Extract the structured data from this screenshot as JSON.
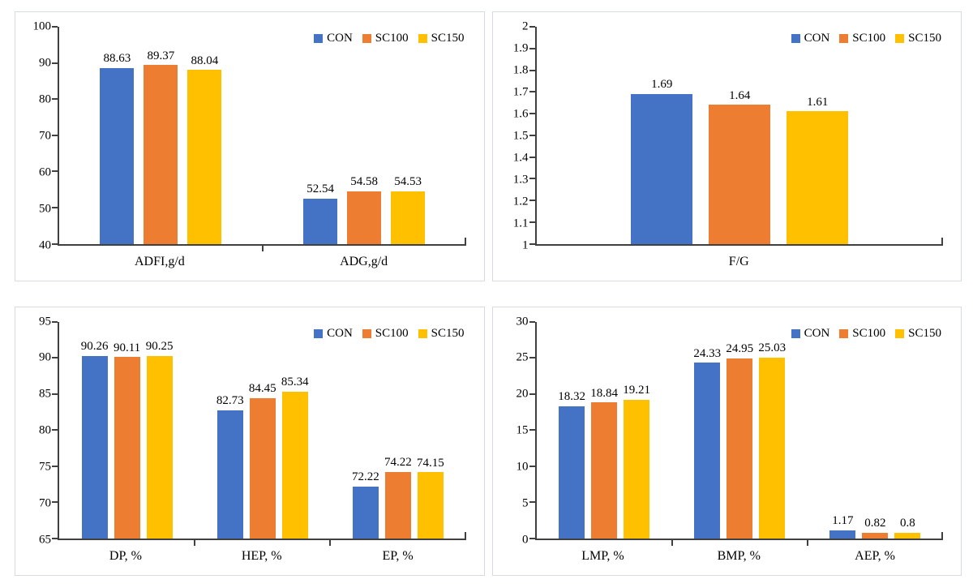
{
  "figure": {
    "background": "#ffffff",
    "panel_border_color": "#d6dce4",
    "axis_color": "#404040",
    "text_color": "#000000",
    "series_colors": {
      "CON": "#4472C4",
      "SC100": "#ED7D31",
      "SC150": "#FFC000"
    }
  },
  "chart_data": [
    {
      "type": "bar",
      "position": "top-left",
      "categories": [
        "ADFI,g/d",
        "ADG,g/d"
      ],
      "series": [
        {
          "name": "CON",
          "color": "#4472C4",
          "values": [
            88.63,
            52.54
          ],
          "labels": [
            "88.63",
            "52.54"
          ]
        },
        {
          "name": "SC100",
          "color": "#ED7D31",
          "values": [
            89.37,
            54.58
          ],
          "labels": [
            "89.37",
            "54.58"
          ]
        },
        {
          "name": "SC150",
          "color": "#FFC000",
          "values": [
            88.04,
            54.53
          ],
          "labels": [
            "88.04",
            "54.53"
          ]
        }
      ],
      "ylim": [
        40,
        100
      ],
      "yticks": [
        "40",
        "50",
        "60",
        "70",
        "80",
        "90",
        "100"
      ],
      "xlabel": "",
      "ylabel": "",
      "grid": false,
      "legend_position": "top-right"
    },
    {
      "type": "bar",
      "position": "top-right",
      "categories": [
        "F/G"
      ],
      "series": [
        {
          "name": "CON",
          "color": "#4472C4",
          "values": [
            1.69
          ],
          "labels": [
            "1.69"
          ]
        },
        {
          "name": "SC100",
          "color": "#ED7D31",
          "values": [
            1.64
          ],
          "labels": [
            "1.64"
          ]
        },
        {
          "name": "SC150",
          "color": "#FFC000",
          "values": [
            1.61
          ],
          "labels": [
            "1.61"
          ]
        }
      ],
      "ylim": [
        1,
        2
      ],
      "yticks": [
        "1",
        "1.1",
        "1.2",
        "1.3",
        "1.4",
        "1.5",
        "1.6",
        "1.7",
        "1.8",
        "1.9",
        "2"
      ],
      "xlabel": "",
      "ylabel": "",
      "grid": false,
      "legend_position": "top-right"
    },
    {
      "type": "bar",
      "position": "bottom-left",
      "categories": [
        "DP, %",
        "HEP, %",
        "EP, %"
      ],
      "series": [
        {
          "name": "CON",
          "color": "#4472C4",
          "values": [
            90.26,
            82.73,
            72.22
          ],
          "labels": [
            "90.26",
            "82.73",
            "72.22"
          ]
        },
        {
          "name": "SC100",
          "color": "#ED7D31",
          "values": [
            90.11,
            84.45,
            74.22
          ],
          "labels": [
            "90.11",
            "84.45",
            "74.22"
          ]
        },
        {
          "name": "SC150",
          "color": "#FFC000",
          "values": [
            90.25,
            85.34,
            74.15
          ],
          "labels": [
            "90.25",
            "85.34",
            "74.15"
          ]
        }
      ],
      "ylim": [
        65,
        95
      ],
      "yticks": [
        "65",
        "70",
        "75",
        "80",
        "85",
        "90",
        "95"
      ],
      "xlabel": "",
      "ylabel": "",
      "grid": false,
      "legend_position": "top-right"
    },
    {
      "type": "bar",
      "position": "bottom-right",
      "categories": [
        "LMP, %",
        "BMP, %",
        "AEP, %"
      ],
      "series": [
        {
          "name": "CON",
          "color": "#4472C4",
          "values": [
            18.32,
            24.33,
            1.17
          ],
          "labels": [
            "18.32",
            "24.33",
            "1.17"
          ]
        },
        {
          "name": "SC100",
          "color": "#ED7D31",
          "values": [
            18.84,
            24.95,
            0.82
          ],
          "labels": [
            "18.84",
            "24.95",
            "0.82"
          ]
        },
        {
          "name": "SC150",
          "color": "#FFC000",
          "values": [
            19.21,
            25.03,
            0.8
          ],
          "labels": [
            "19.21",
            "25.03",
            "0.8"
          ]
        }
      ],
      "ylim": [
        0,
        30
      ],
      "yticks": [
        "0",
        "5",
        "10",
        "15",
        "20",
        "25",
        "30"
      ],
      "xlabel": "",
      "ylabel": "",
      "grid": false,
      "legend_position": "top-right"
    }
  ]
}
